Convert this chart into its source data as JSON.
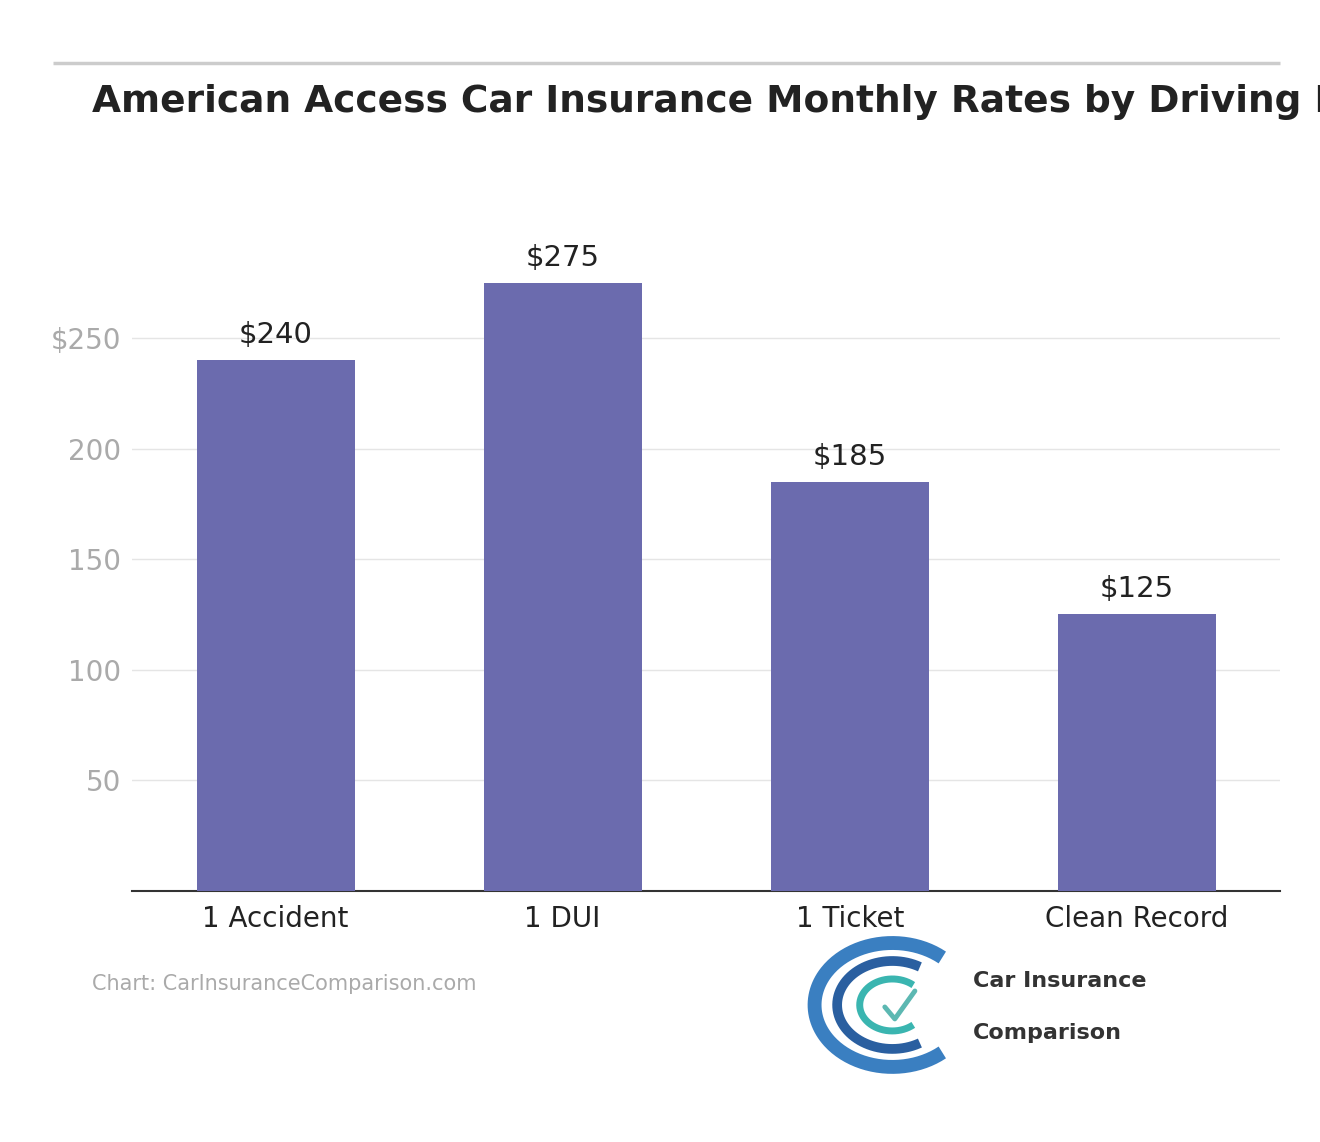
{
  "title": "American Access Car Insurance Monthly Rates by Driving Record",
  "categories": [
    "1 Accident",
    "1 DUI",
    "1 Ticket",
    "Clean Record"
  ],
  "values": [
    240,
    275,
    185,
    125
  ],
  "bar_color": "#6b6bae",
  "bar_labels": [
    "$240",
    "$275",
    "$185",
    "$125"
  ],
  "yticks": [
    50,
    100,
    150,
    200,
    250
  ],
  "ytick_labels": [
    "50",
    "100",
    "150",
    "200",
    "$250"
  ],
  "ylim": [
    0,
    310
  ],
  "background_color": "#ffffff",
  "title_fontsize": 27,
  "tick_label_fontsize": 20,
  "bar_label_fontsize": 21,
  "source_text": "Chart: CarInsuranceComparison.com",
  "source_fontsize": 15,
  "source_color": "#aaaaaa",
  "axis_label_color": "#aaaaaa",
  "grid_color": "#e5e5e5",
  "title_color": "#222222",
  "bottom_spine_color": "#333333"
}
